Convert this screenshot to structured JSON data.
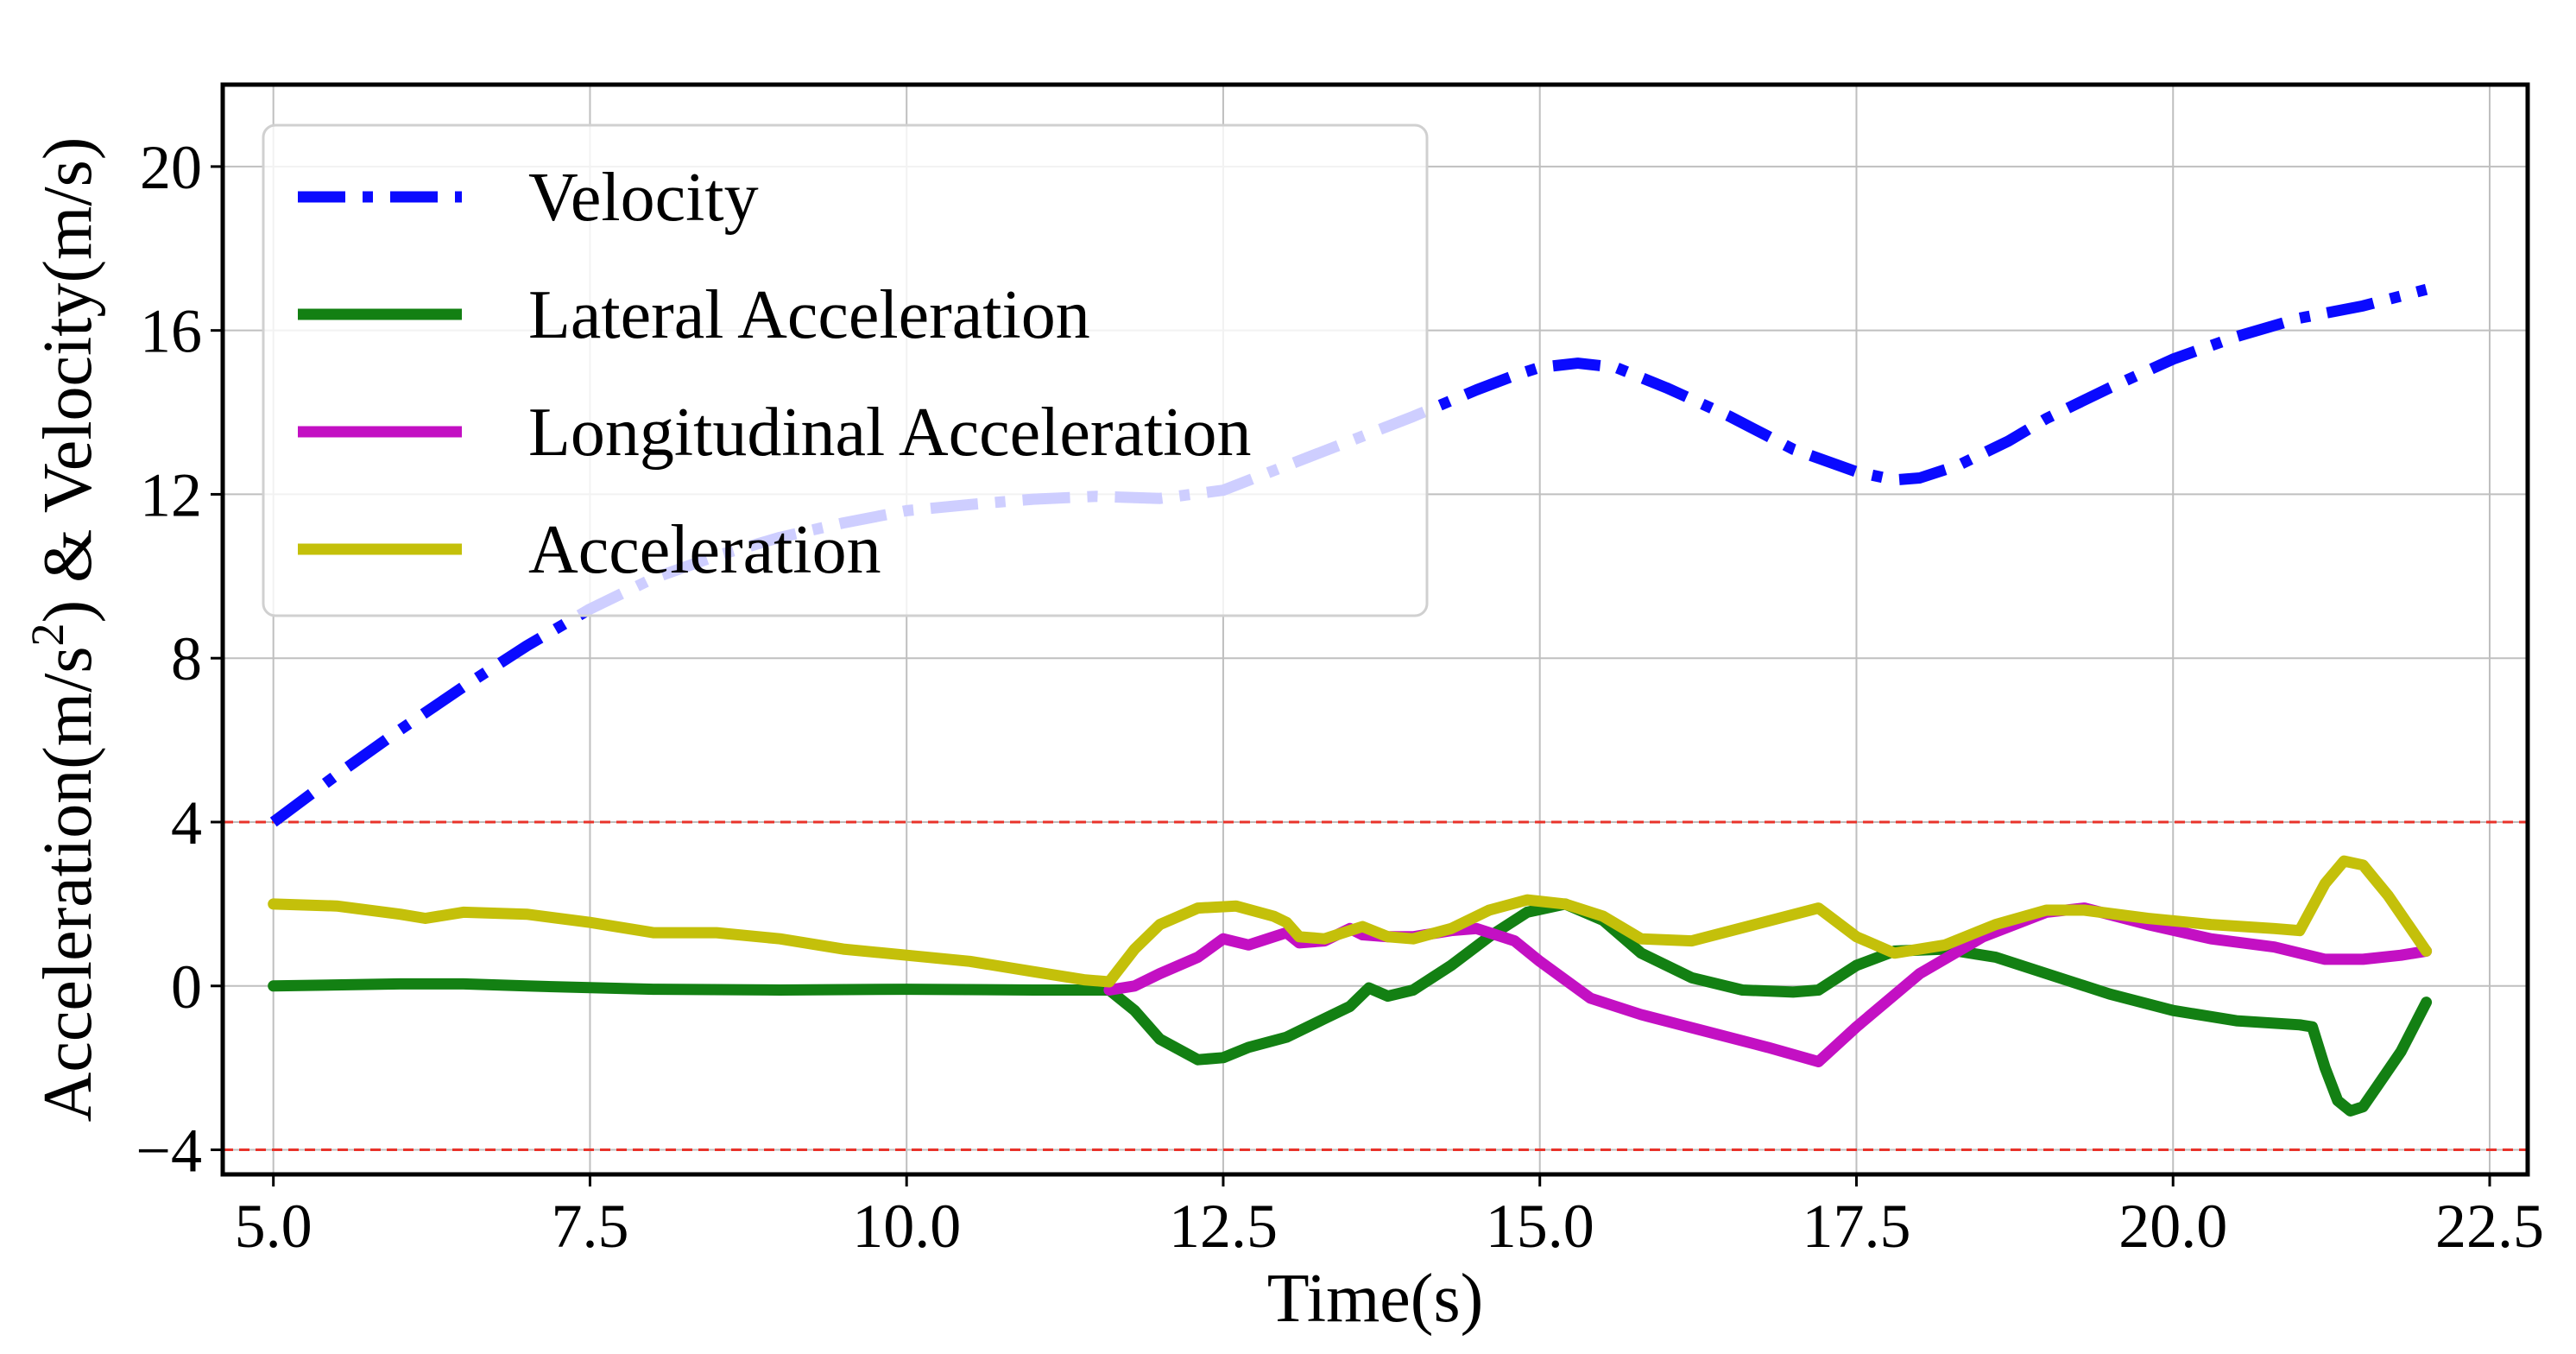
{
  "chart_data": {
    "type": "line",
    "title": "",
    "xlabel": "Time(s)",
    "ylabel_parts": {
      "before_sup": "Acceleration(m/s",
      "sup": "2",
      "after_sup": ") & Velocity(m/s)"
    },
    "xlim": [
      4.6,
      22.8
    ],
    "ylim": [
      -4.6,
      22.0
    ],
    "x_ticks": [
      5.0,
      7.5,
      10.0,
      12.5,
      15.0,
      17.5,
      20.0,
      22.5
    ],
    "x_tick_labels": [
      "5.0",
      "7.5",
      "10.0",
      "12.5",
      "15.0",
      "17.5",
      "20.0",
      "22.5"
    ],
    "y_ticks": [
      -4,
      0,
      4,
      8,
      12,
      16,
      20
    ],
    "y_tick_labels": [
      "−4",
      "0",
      "4",
      "8",
      "12",
      "16",
      "20"
    ],
    "grid": true,
    "reference_lines": [
      {
        "name": "upper-limit",
        "y": 4,
        "color": "#e8332a",
        "style": "dashed"
      },
      {
        "name": "lower-limit",
        "y": -4,
        "color": "#e8332a",
        "style": "dashed"
      }
    ],
    "legend_position": "upper-left",
    "series": [
      {
        "name": "Velocity",
        "color": "#0a0aff",
        "style": "dashdot",
        "x": [
          5.0,
          5.5,
          6.0,
          6.5,
          7.0,
          7.5,
          8.0,
          8.5,
          9.0,
          9.5,
          10.0,
          10.5,
          11.0,
          11.5,
          12.0,
          12.5,
          13.0,
          13.5,
          14.0,
          14.5,
          14.8,
          15.0,
          15.3,
          15.6,
          16.0,
          16.5,
          17.0,
          17.5,
          17.8,
          18.0,
          18.3,
          18.7,
          19.0,
          19.5,
          20.0,
          20.5,
          21.0,
          21.5,
          22.0
        ],
        "y": [
          4.0,
          5.15,
          6.25,
          7.3,
          8.3,
          9.2,
          9.95,
          10.5,
          10.95,
          11.3,
          11.6,
          11.75,
          11.88,
          11.95,
          11.9,
          12.1,
          12.7,
          13.3,
          13.9,
          14.55,
          14.9,
          15.1,
          15.2,
          15.1,
          14.6,
          13.9,
          13.1,
          12.55,
          12.35,
          12.4,
          12.7,
          13.3,
          13.85,
          14.6,
          15.3,
          15.85,
          16.3,
          16.6,
          17.0
        ]
      },
      {
        "name": "Lateral Acceleration",
        "color": "#138013",
        "style": "solid",
        "x": [
          5.0,
          6.0,
          6.5,
          7.0,
          8.0,
          9.0,
          10.0,
          11.0,
          11.6,
          11.8,
          12.0,
          12.3,
          12.5,
          12.7,
          13.0,
          13.3,
          13.5,
          13.65,
          13.8,
          14.0,
          14.3,
          14.6,
          14.9,
          15.2,
          15.5,
          15.8,
          16.2,
          16.6,
          17.0,
          17.2,
          17.5,
          17.8,
          18.2,
          18.6,
          19.0,
          19.5,
          20.0,
          20.5,
          21.0,
          21.1,
          21.2,
          21.3,
          21.4,
          21.5,
          21.6,
          21.8,
          22.0
        ],
        "y": [
          0.0,
          0.05,
          0.05,
          0.0,
          -0.08,
          -0.1,
          -0.08,
          -0.1,
          -0.1,
          -0.6,
          -1.3,
          -1.8,
          -1.75,
          -1.5,
          -1.25,
          -0.8,
          -0.5,
          -0.05,
          -0.25,
          -0.1,
          0.5,
          1.2,
          1.8,
          2.0,
          1.6,
          0.8,
          0.2,
          -0.1,
          -0.15,
          -0.1,
          0.5,
          0.85,
          0.9,
          0.7,
          0.3,
          -0.2,
          -0.6,
          -0.85,
          -0.95,
          -1.0,
          -2.0,
          -2.8,
          -3.05,
          -2.95,
          -2.5,
          -1.6,
          -0.4
        ]
      },
      {
        "name": "Longitudinal Acceleration",
        "color": "#c310c3",
        "style": "solid",
        "x": [
          11.6,
          11.8,
          12.0,
          12.3,
          12.5,
          12.7,
          12.9,
          13.0,
          13.1,
          13.3,
          13.5,
          13.6,
          13.8,
          14.0,
          14.3,
          14.5,
          14.8,
          15.0,
          15.4,
          15.8,
          16.3,
          16.8,
          17.2,
          17.5,
          18.0,
          18.5,
          19.0,
          19.3,
          19.8,
          20.3,
          20.8,
          21.0,
          21.2,
          21.5,
          21.8,
          22.0
        ],
        "y": [
          -0.1,
          0.0,
          0.3,
          0.7,
          1.15,
          1.0,
          1.2,
          1.3,
          1.05,
          1.1,
          1.4,
          1.25,
          1.2,
          1.2,
          1.35,
          1.4,
          1.1,
          0.6,
          -0.3,
          -0.7,
          -1.1,
          -1.5,
          -1.85,
          -1.0,
          0.3,
          1.2,
          1.8,
          1.9,
          1.5,
          1.15,
          0.95,
          0.8,
          0.65,
          0.65,
          0.75,
          0.85
        ]
      },
      {
        "name": "Acceleration",
        "color": "#c4c00a",
        "style": "solid",
        "x": [
          5.0,
          5.5,
          6.0,
          6.2,
          6.5,
          7.0,
          7.5,
          8.0,
          8.5,
          9.0,
          9.5,
          10.0,
          10.5,
          11.0,
          11.4,
          11.6,
          11.8,
          12.0,
          12.3,
          12.6,
          12.9,
          13.0,
          13.1,
          13.3,
          13.5,
          13.6,
          13.8,
          14.0,
          14.3,
          14.6,
          14.9,
          15.2,
          15.5,
          15.8,
          16.2,
          16.7,
          17.2,
          17.5,
          17.8,
          18.2,
          18.6,
          19.0,
          19.3,
          19.8,
          20.3,
          20.8,
          21.0,
          21.2,
          21.35,
          21.5,
          21.7,
          22.0
        ],
        "y": [
          2.0,
          1.95,
          1.75,
          1.65,
          1.8,
          1.75,
          1.55,
          1.3,
          1.3,
          1.15,
          0.9,
          0.75,
          0.6,
          0.35,
          0.15,
          0.1,
          0.9,
          1.5,
          1.9,
          1.95,
          1.7,
          1.55,
          1.2,
          1.15,
          1.35,
          1.45,
          1.2,
          1.15,
          1.4,
          1.85,
          2.1,
          2.0,
          1.7,
          1.15,
          1.1,
          1.5,
          1.9,
          1.2,
          0.8,
          1.0,
          1.5,
          1.85,
          1.85,
          1.65,
          1.5,
          1.4,
          1.35,
          2.5,
          3.05,
          2.95,
          2.2,
          0.85
        ]
      }
    ]
  }
}
